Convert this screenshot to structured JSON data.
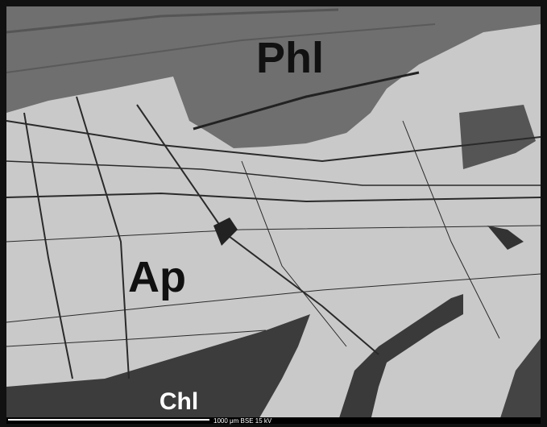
{
  "labels": {
    "phl": "Phl",
    "ap": "Ap",
    "chl": "Chl"
  },
  "scale_bar": "1000 μm  BSE  15 kV"
}
